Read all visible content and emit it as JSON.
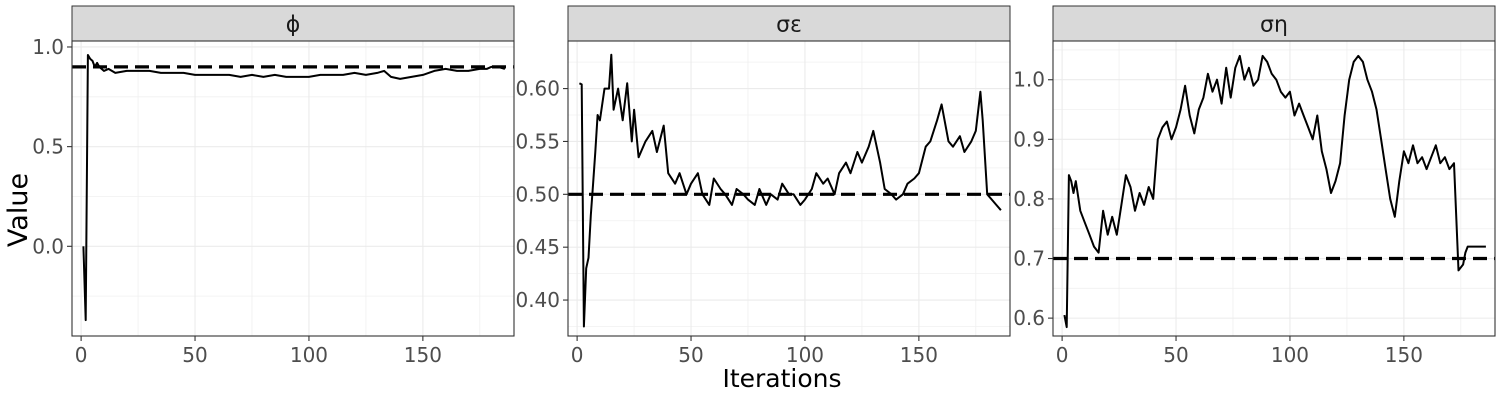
{
  "figure": {
    "ylabel": "Value",
    "xlabel": "Iterations"
  },
  "chart_data": [
    {
      "type": "line",
      "facet_title": "ϕ",
      "xlim": [
        -4,
        190
      ],
      "ylim": [
        -0.45,
        1.03
      ],
      "x_ticks": [
        0,
        50,
        100,
        150
      ],
      "y_ticks": [
        0.0,
        0.5,
        1.0
      ],
      "y_tick_labels": [
        "0.0",
        "0.5",
        "1.0"
      ],
      "grid": true,
      "reference_value": 0.9,
      "series": [
        {
          "x": [
            1,
            2,
            3,
            4,
            5,
            6,
            7,
            8,
            10,
            12,
            15,
            20,
            25,
            30,
            35,
            40,
            45,
            50,
            55,
            60,
            65,
            70,
            75,
            80,
            85,
            90,
            95,
            100,
            105,
            110,
            115,
            120,
            125,
            130,
            133,
            136,
            140,
            145,
            150,
            155,
            160,
            165,
            170,
            175,
            178,
            180,
            183,
            186
          ],
          "y": [
            0.0,
            -0.37,
            0.96,
            0.94,
            0.93,
            0.9,
            0.92,
            0.9,
            0.88,
            0.89,
            0.87,
            0.88,
            0.88,
            0.88,
            0.87,
            0.87,
            0.87,
            0.86,
            0.86,
            0.86,
            0.86,
            0.85,
            0.86,
            0.85,
            0.86,
            0.85,
            0.85,
            0.85,
            0.86,
            0.86,
            0.86,
            0.87,
            0.86,
            0.87,
            0.88,
            0.85,
            0.84,
            0.85,
            0.86,
            0.88,
            0.89,
            0.88,
            0.88,
            0.89,
            0.89,
            0.9,
            0.9,
            0.89
          ]
        }
      ]
    },
    {
      "type": "line",
      "facet_title": "σε",
      "xlim": [
        -4,
        190
      ],
      "ylim": [
        0.366,
        0.645
      ],
      "x_ticks": [
        0,
        50,
        100,
        150
      ],
      "y_ticks": [
        0.4,
        0.45,
        0.5,
        0.55,
        0.6
      ],
      "y_tick_labels": [
        "0.40",
        "0.45",
        "0.50",
        "0.55",
        "0.60"
      ],
      "grid": true,
      "reference_value": 0.5,
      "series": [
        {
          "x": [
            1,
            2,
            3,
            4,
            5,
            6,
            7,
            8,
            9,
            10,
            12,
            14,
            15,
            16,
            18,
            20,
            22,
            24,
            25,
            27,
            30,
            33,
            35,
            38,
            40,
            43,
            45,
            48,
            50,
            53,
            55,
            58,
            60,
            63,
            65,
            68,
            70,
            73,
            75,
            78,
            80,
            83,
            85,
            88,
            90,
            93,
            95,
            98,
            100,
            103,
            105,
            108,
            110,
            113,
            115,
            118,
            120,
            123,
            125,
            128,
            130,
            133,
            135,
            138,
            140,
            143,
            145,
            148,
            150,
            153,
            155,
            158,
            160,
            163,
            165,
            168,
            170,
            173,
            175,
            177,
            178,
            180,
            182,
            184,
            186
          ],
          "y": [
            0.605,
            0.604,
            0.375,
            0.43,
            0.44,
            0.48,
            0.51,
            0.54,
            0.575,
            0.57,
            0.6,
            0.6,
            0.632,
            0.58,
            0.6,
            0.57,
            0.605,
            0.55,
            0.58,
            0.535,
            0.55,
            0.56,
            0.54,
            0.565,
            0.52,
            0.51,
            0.52,
            0.5,
            0.51,
            0.52,
            0.5,
            0.49,
            0.515,
            0.505,
            0.5,
            0.49,
            0.505,
            0.5,
            0.495,
            0.49,
            0.505,
            0.49,
            0.5,
            0.495,
            0.51,
            0.5,
            0.5,
            0.49,
            0.495,
            0.505,
            0.52,
            0.51,
            0.515,
            0.5,
            0.52,
            0.53,
            0.52,
            0.54,
            0.53,
            0.545,
            0.56,
            0.53,
            0.505,
            0.5,
            0.495,
            0.5,
            0.51,
            0.515,
            0.52,
            0.545,
            0.55,
            0.57,
            0.585,
            0.55,
            0.545,
            0.555,
            0.54,
            0.55,
            0.56,
            0.597,
            0.57,
            0.5,
            0.495,
            0.49,
            0.485
          ]
        }
      ]
    },
    {
      "type": "line",
      "facet_title": "ση",
      "xlim": [
        -4,
        190
      ],
      "ylim": [
        0.57,
        1.065
      ],
      "x_ticks": [
        0,
        50,
        100,
        150
      ],
      "y_ticks": [
        0.6,
        0.7,
        0.8,
        0.9,
        1.0
      ],
      "y_tick_labels": [
        "0.6",
        "0.7",
        "0.8",
        "0.9",
        "1.0"
      ],
      "grid": true,
      "reference_value": 0.7,
      "series": [
        {
          "x": [
            1,
            2,
            3,
            4,
            5,
            6,
            8,
            10,
            12,
            14,
            16,
            18,
            20,
            22,
            24,
            26,
            28,
            30,
            32,
            34,
            36,
            38,
            40,
            42,
            44,
            46,
            48,
            50,
            52,
            54,
            56,
            58,
            60,
            62,
            64,
            66,
            68,
            70,
            72,
            74,
            76,
            78,
            80,
            82,
            84,
            86,
            88,
            90,
            92,
            94,
            96,
            98,
            100,
            102,
            104,
            106,
            108,
            110,
            112,
            114,
            116,
            118,
            120,
            122,
            124,
            126,
            128,
            130,
            132,
            134,
            136,
            138,
            140,
            142,
            144,
            146,
            148,
            150,
            152,
            154,
            156,
            158,
            160,
            162,
            164,
            166,
            168,
            170,
            172,
            174,
            176,
            177,
            178,
            180,
            182,
            184,
            186
          ],
          "y": [
            0.605,
            0.585,
            0.84,
            0.83,
            0.81,
            0.83,
            0.78,
            0.76,
            0.74,
            0.72,
            0.71,
            0.78,
            0.74,
            0.77,
            0.74,
            0.79,
            0.84,
            0.82,
            0.78,
            0.81,
            0.79,
            0.82,
            0.8,
            0.9,
            0.92,
            0.93,
            0.9,
            0.92,
            0.95,
            0.99,
            0.94,
            0.91,
            0.95,
            0.97,
            1.01,
            0.98,
            1.0,
            0.96,
            1.02,
            0.97,
            1.02,
            1.04,
            1.0,
            1.02,
            0.99,
            1.0,
            1.04,
            1.03,
            1.01,
            1.0,
            0.98,
            0.97,
            0.98,
            0.94,
            0.96,
            0.94,
            0.92,
            0.9,
            0.94,
            0.88,
            0.85,
            0.81,
            0.83,
            0.86,
            0.94,
            1.0,
            1.03,
            1.04,
            1.03,
            1.0,
            0.98,
            0.95,
            0.9,
            0.85,
            0.8,
            0.77,
            0.83,
            0.88,
            0.86,
            0.89,
            0.86,
            0.87,
            0.85,
            0.87,
            0.89,
            0.86,
            0.87,
            0.85,
            0.86,
            0.68,
            0.69,
            0.71,
            0.72,
            0.72,
            0.72,
            0.72,
            0.72
          ]
        }
      ]
    }
  ]
}
